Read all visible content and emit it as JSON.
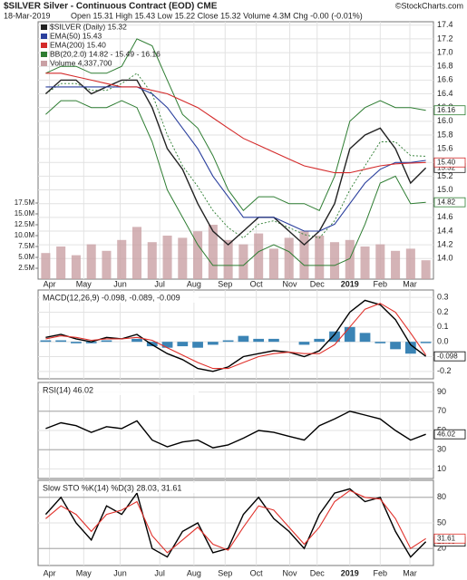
{
  "header": {
    "title": "$SILVER Silver - Continuous Contract (EOD) CME",
    "credit": "©StockCharts.com",
    "date": "18-Mar-2019",
    "quote": "Open 15.31  High 15.43  Low 15.22  Close 15.32  Volume 4.3M  Chg -0.00 (-0.01%)"
  },
  "chart_data": [
    {
      "type": "line",
      "x": [
        0,
        2,
        4,
        6,
        8,
        10,
        12,
        14,
        16,
        18,
        20,
        22,
        24,
        26,
        28,
        30,
        32,
        34,
        36,
        38,
        40,
        42,
        44,
        46,
        48,
        50
      ],
      "xlim": [
        -1,
        51
      ],
      "xticks": [
        {
          "value": 0.5,
          "label": "Apr"
        },
        {
          "value": 5,
          "label": "May"
        },
        {
          "value": 9.8,
          "label": "Jun"
        },
        {
          "value": 15,
          "label": "Jul"
        },
        {
          "value": 19.5,
          "label": "Aug"
        },
        {
          "value": 23.6,
          "label": "Sep"
        },
        {
          "value": 27.7,
          "label": "Oct"
        },
        {
          "value": 32.1,
          "label": "Nov"
        },
        {
          "value": 35.7,
          "label": "Dec"
        },
        {
          "value": 40,
          "label": "2019"
        },
        {
          "value": 44,
          "label": "Feb"
        },
        {
          "value": 47.9,
          "label": "Mar"
        }
      ],
      "ylim": [
        13.7,
        17.45
      ],
      "yticks": [
        {
          "value": 14,
          "label": "14.0"
        },
        14.2,
        14.4,
        14.6,
        14.8,
        {
          "value": 15,
          "label": "15.0"
        },
        15.2,
        15.4,
        15.6,
        15.8,
        {
          "value": 16,
          "label": "16.0"
        },
        16.2,
        16.4,
        16.6,
        16.8,
        {
          "value": 17,
          "label": "17.0"
        },
        17.2,
        17.4
      ],
      "grid": true,
      "series": [
        {
          "name": "$SILVER (Daily) 15.32",
          "color": "#222222",
          "values": [
            16.4,
            16.6,
            16.6,
            16.4,
            16.5,
            16.6,
            16.6,
            16.2,
            15.6,
            15.3,
            14.8,
            14.4,
            14.2,
            14.4,
            14.6,
            14.6,
            14.4,
            14.2,
            14.4,
            14.8,
            15.6,
            15.8,
            15.9,
            15.6,
            15.1,
            15.32
          ],
          "end_label": "15.32"
        },
        {
          "name": "EMA(50) 15.43",
          "color": "#2a3f9d",
          "values": [
            16.5,
            16.5,
            16.5,
            16.5,
            16.5,
            16.5,
            16.5,
            16.4,
            16.2,
            15.9,
            15.6,
            15.2,
            14.9,
            14.6,
            14.6,
            14.6,
            14.5,
            14.4,
            14.4,
            14.5,
            14.8,
            15.1,
            15.3,
            15.4,
            15.4,
            15.43
          ]
        },
        {
          "name": "EMA(200) 15.40",
          "color": "#d42a2a",
          "values": [
            16.7,
            16.7,
            16.65,
            16.6,
            16.55,
            16.5,
            16.5,
            16.45,
            16.4,
            16.3,
            16.2,
            16.05,
            15.9,
            15.75,
            15.65,
            15.55,
            15.45,
            15.35,
            15.3,
            15.25,
            15.25,
            15.3,
            15.35,
            15.38,
            15.39,
            15.4
          ],
          "end_label": "15.40"
        }
      ],
      "bands": {
        "name": "BB(20,2.0) 14.82 - 15.49 - 16.16",
        "color": "#2e7d32",
        "upper": [
          16.7,
          16.8,
          16.8,
          16.7,
          16.7,
          16.8,
          17.2,
          17.1,
          16.6,
          16.1,
          15.9,
          15.5,
          15.0,
          14.7,
          14.9,
          14.9,
          14.8,
          14.8,
          14.7,
          15.2,
          16.0,
          16.2,
          16.3,
          16.2,
          16.2,
          16.16
        ],
        "middle": [
          16.4,
          16.55,
          16.55,
          16.45,
          16.45,
          16.55,
          16.7,
          16.4,
          15.8,
          15.35,
          15.05,
          14.7,
          14.45,
          14.3,
          14.5,
          14.55,
          14.45,
          14.35,
          14.3,
          14.55,
          15.0,
          15.35,
          15.7,
          15.7,
          15.5,
          15.49
        ],
        "lower": [
          16.1,
          16.3,
          16.3,
          16.2,
          16.2,
          16.3,
          16.2,
          15.7,
          15.0,
          14.6,
          14.2,
          13.9,
          13.9,
          13.9,
          14.1,
          14.2,
          14.1,
          13.9,
          13.9,
          13.9,
          14.0,
          14.5,
          15.1,
          15.2,
          14.8,
          14.82
        ],
        "upper_label": "16.16",
        "lower_label": "14.82"
      },
      "volume": {
        "name": "Volume 4,337,700",
        "color": "#c9a0a4",
        "values": [
          6000000,
          7500000,
          5500000,
          8000000,
          6500000,
          9000000,
          12000000,
          8500000,
          10000000,
          9500000,
          11000000,
          12500000,
          9000000,
          8000000,
          10500000,
          7000000,
          9500000,
          11000000,
          10000000,
          8500000,
          9000000,
          7500000,
          8000000,
          6500000,
          7000000,
          4337700
        ],
        "ylim": [
          0,
          20000000
        ],
        "yticks": [
          {
            "value": 2500000,
            "label": "2.5M"
          },
          {
            "value": 5000000,
            "label": "5.0M"
          },
          {
            "value": 7500000,
            "label": "7.5M"
          },
          {
            "value": 10000000,
            "label": "10.0M"
          },
          {
            "value": 12500000,
            "label": "12.5M"
          },
          {
            "value": 15000000,
            "label": "15.0M"
          },
          {
            "value": 17500000,
            "label": "17.5M"
          }
        ]
      }
    },
    {
      "type": "macd",
      "title": "MACD(12,26,9) -0.098, -0.089, -0.009",
      "ylim": [
        -0.25,
        0.35
      ],
      "yticks": [
        -0.2,
        -0.1,
        {
          "value": 0,
          "label": "0.0"
        },
        0.1,
        0.2,
        0.3
      ],
      "series": [
        {
          "color": "#000000",
          "values": [
            0.03,
            0.05,
            0.02,
            0.0,
            0.03,
            0.02,
            0.05,
            -0.02,
            -0.08,
            -0.12,
            -0.18,
            -0.2,
            -0.17,
            -0.1,
            -0.08,
            -0.06,
            -0.07,
            -0.1,
            -0.06,
            0.05,
            0.2,
            0.28,
            0.25,
            0.15,
            -0.02,
            -0.098
          ],
          "end_label": "-0.098"
        },
        {
          "color": "#e0302a",
          "values": [
            0.02,
            0.04,
            0.03,
            0.01,
            0.02,
            0.02,
            0.03,
            0.01,
            -0.04,
            -0.09,
            -0.14,
            -0.18,
            -0.18,
            -0.14,
            -0.1,
            -0.08,
            -0.07,
            -0.08,
            -0.08,
            -0.02,
            0.1,
            0.22,
            0.26,
            0.2,
            0.06,
            -0.089
          ]
        }
      ],
      "histogram": {
        "color": "#3b84b5",
        "values": [
          0.01,
          0.01,
          -0.01,
          -0.01,
          0.01,
          0,
          0.02,
          -0.03,
          -0.04,
          -0.03,
          -0.04,
          -0.02,
          0.01,
          0.04,
          0.02,
          0.02,
          0,
          -0.02,
          0.02,
          0.07,
          0.1,
          0.06,
          -0.01,
          -0.05,
          -0.08,
          -0.009
        ]
      }
    },
    {
      "type": "line",
      "title": "RSI(14) 46.02",
      "ylim": [
        0,
        100
      ],
      "yticks": [
        10,
        30,
        50,
        70,
        90
      ],
      "series": [
        {
          "color": "#000000",
          "values": [
            52,
            58,
            55,
            48,
            54,
            52,
            60,
            40,
            33,
            38,
            40,
            32,
            35,
            42,
            50,
            48,
            44,
            40,
            55,
            62,
            70,
            66,
            62,
            50,
            40,
            46.02
          ],
          "end_label": "46.02"
        }
      ],
      "reference_lines": [
        70,
        30
      ]
    },
    {
      "type": "line",
      "title": "Slow STO %K(14) %D(3) 28.03, 31.61",
      "ylim": [
        0,
        100
      ],
      "yticks": [
        20,
        50,
        80
      ],
      "series": [
        {
          "color": "#000000",
          "values": [
            60,
            80,
            50,
            30,
            70,
            60,
            85,
            20,
            10,
            40,
            50,
            15,
            20,
            60,
            80,
            55,
            40,
            20,
            60,
            85,
            90,
            75,
            80,
            40,
            10,
            28.03
          ],
          "end_label": "28.03"
        },
        {
          "color": "#e0302a",
          "values": [
            55,
            70,
            60,
            40,
            60,
            65,
            75,
            35,
            15,
            30,
            45,
            25,
            18,
            45,
            70,
            65,
            45,
            25,
            45,
            75,
            88,
            80,
            78,
            55,
            20,
            31.61
          ],
          "end_label": "31.61"
        }
      ],
      "reference_lines": [
        80,
        20
      ]
    }
  ]
}
